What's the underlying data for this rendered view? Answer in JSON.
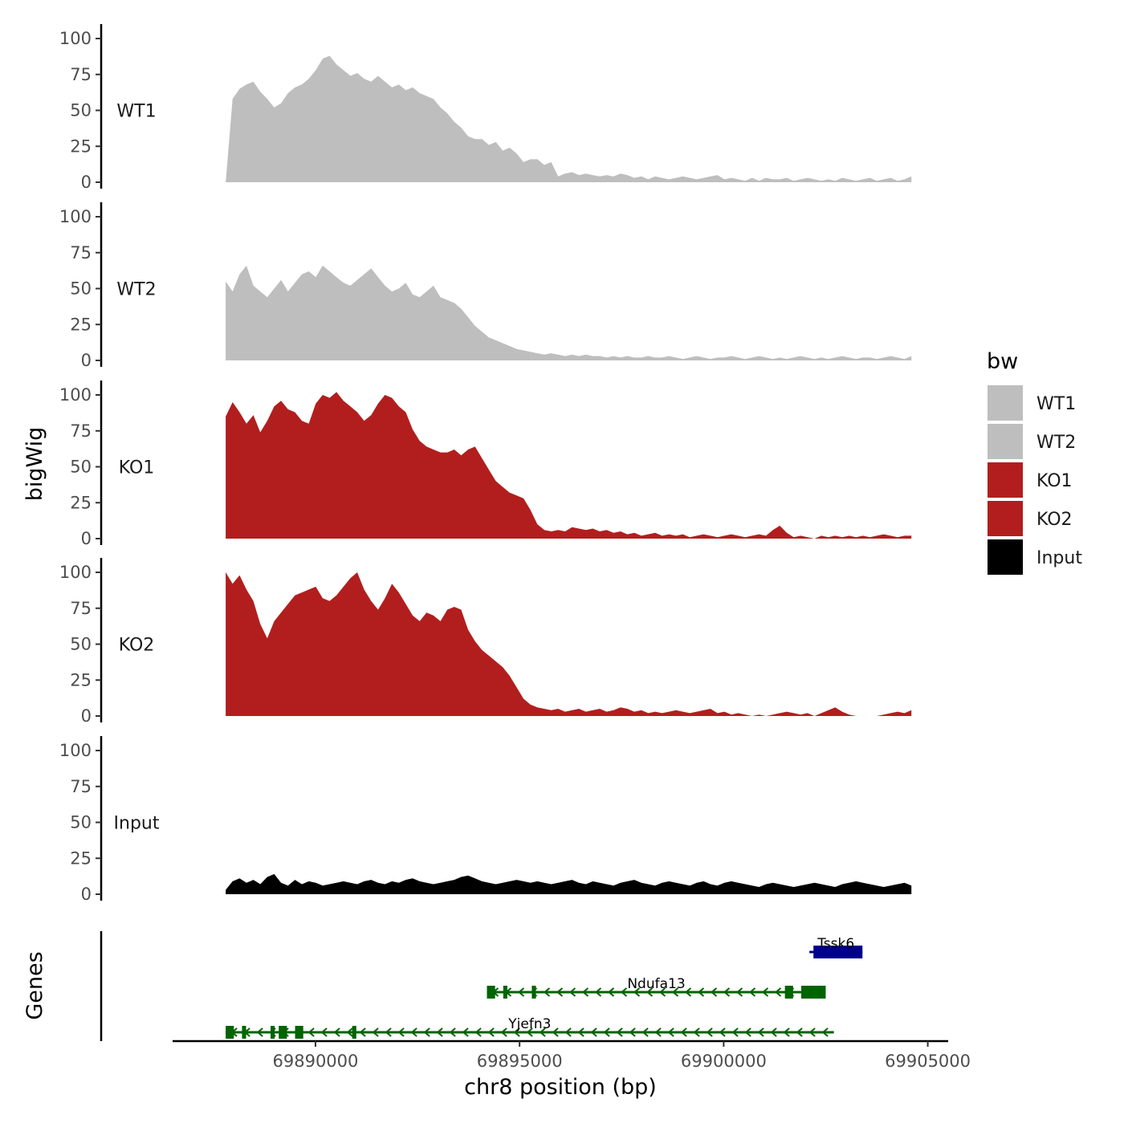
{
  "chart_data": {
    "type": "area",
    "y_axis_title": "bigWig",
    "x_axis_title": "chr8 position (bp)",
    "genes_title": "Genes",
    "x_range": [
      69886500,
      69905500
    ],
    "x_ticks": [
      69890000,
      69895000,
      69900000,
      69905000
    ],
    "x_tick_labels": [
      "69890000",
      "69895000",
      "69900000",
      "69905000"
    ],
    "y_range": [
      0,
      100
    ],
    "y_ticks": [
      0,
      25,
      50,
      75,
      100
    ],
    "y_tick_labels": [
      "0",
      "25",
      "50",
      "75",
      "100"
    ],
    "data_x_range": [
      69887800,
      69904600
    ],
    "tracks": [
      {
        "name": "WT1",
        "color": "#bebebe",
        "values": [
          0,
          58,
          65,
          68,
          70,
          63,
          58,
          52,
          55,
          62,
          66,
          68,
          72,
          78,
          86,
          88,
          82,
          78,
          74,
          76,
          72,
          70,
          74,
          70,
          66,
          68,
          64,
          66,
          62,
          60,
          58,
          52,
          48,
          42,
          38,
          32,
          30,
          30,
          26,
          28,
          22,
          24,
          20,
          14,
          16,
          16,
          12,
          14,
          4,
          6,
          7,
          5,
          6,
          5,
          4,
          5,
          4,
          6,
          5,
          3,
          4,
          2,
          4,
          3,
          2,
          3,
          4,
          3,
          2,
          3,
          4,
          5,
          2,
          3,
          2,
          1,
          3,
          1,
          3,
          2,
          2,
          3,
          1,
          2,
          3,
          2,
          1,
          2,
          1,
          3,
          2,
          1,
          2,
          3,
          1,
          2,
          3,
          1,
          2,
          4
        ]
      },
      {
        "name": "WT2",
        "color": "#bebebe",
        "values": [
          55,
          48,
          60,
          66,
          52,
          48,
          44,
          50,
          56,
          48,
          54,
          60,
          62,
          58,
          66,
          62,
          58,
          54,
          52,
          56,
          60,
          64,
          58,
          52,
          48,
          50,
          54,
          46,
          44,
          48,
          52,
          44,
          42,
          40,
          36,
          30,
          24,
          20,
          16,
          14,
          12,
          10,
          8,
          7,
          6,
          5,
          4,
          5,
          4,
          3,
          4,
          3,
          4,
          3,
          3,
          2,
          3,
          2,
          3,
          2,
          2,
          3,
          2,
          2,
          3,
          2,
          1,
          2,
          3,
          2,
          1,
          2,
          2,
          3,
          2,
          1,
          2,
          3,
          2,
          1,
          2,
          1,
          2,
          3,
          2,
          1,
          2,
          1,
          2,
          3,
          2,
          1,
          2,
          2,
          1,
          2,
          3,
          2,
          1,
          3
        ]
      },
      {
        "name": "KO1",
        "color": "#b21e1e",
        "values": [
          85,
          95,
          88,
          80,
          86,
          74,
          82,
          92,
          96,
          90,
          88,
          82,
          80,
          94,
          100,
          98,
          102,
          96,
          92,
          88,
          82,
          86,
          94,
          100,
          98,
          92,
          88,
          76,
          68,
          64,
          62,
          60,
          60,
          62,
          58,
          62,
          64,
          56,
          48,
          40,
          36,
          32,
          30,
          28,
          20,
          10,
          6,
          5,
          6,
          5,
          8,
          7,
          6,
          7,
          5,
          6,
          4,
          5,
          3,
          4,
          2,
          3,
          4,
          2,
          3,
          2,
          3,
          1,
          2,
          3,
          2,
          1,
          2,
          3,
          2,
          1,
          2,
          3,
          2,
          6,
          9,
          4,
          1,
          2,
          1,
          0,
          2,
          1,
          2,
          1,
          2,
          1,
          2,
          1,
          2,
          3,
          2,
          1,
          2,
          2
        ]
      },
      {
        "name": "KO2",
        "color": "#b21e1e",
        "values": [
          100,
          92,
          98,
          88,
          80,
          64,
          54,
          66,
          72,
          78,
          84,
          86,
          88,
          90,
          82,
          80,
          84,
          90,
          96,
          100,
          88,
          80,
          74,
          82,
          92,
          86,
          78,
          70,
          66,
          72,
          70,
          66,
          74,
          76,
          74,
          60,
          52,
          46,
          42,
          38,
          34,
          28,
          20,
          12,
          8,
          6,
          5,
          4,
          5,
          3,
          4,
          5,
          3,
          4,
          5,
          3,
          4,
          6,
          5,
          3,
          4,
          2,
          3,
          2,
          3,
          4,
          3,
          2,
          3,
          4,
          5,
          2,
          3,
          1,
          2,
          1,
          0,
          1,
          0,
          1,
          2,
          3,
          2,
          1,
          2,
          0,
          2,
          4,
          6,
          3,
          1,
          0,
          0,
          0,
          0,
          1,
          2,
          3,
          2,
          4
        ]
      },
      {
        "name": "Input",
        "color": "#000000",
        "values": [
          3,
          9,
          11,
          8,
          10,
          7,
          12,
          14,
          8,
          6,
          10,
          7,
          9,
          8,
          6,
          7,
          8,
          9,
          8,
          7,
          9,
          10,
          8,
          7,
          9,
          8,
          10,
          11,
          9,
          8,
          7,
          8,
          9,
          10,
          12,
          13,
          11,
          9,
          8,
          7,
          8,
          9,
          10,
          9,
          8,
          9,
          8,
          7,
          8,
          9,
          10,
          8,
          7,
          9,
          8,
          7,
          6,
          8,
          9,
          10,
          8,
          7,
          6,
          8,
          9,
          8,
          7,
          6,
          8,
          9,
          7,
          6,
          8,
          9,
          8,
          7,
          6,
          5,
          7,
          8,
          7,
          6,
          5,
          6,
          7,
          8,
          7,
          6,
          5,
          7,
          8,
          9,
          8,
          7,
          6,
          5,
          6,
          7,
          8,
          6
        ]
      }
    ],
    "legend_title": "bw",
    "legend_items": [
      {
        "label": "WT1",
        "color": "#bebebe"
      },
      {
        "label": "WT2",
        "color": "#bebebe"
      },
      {
        "label": "KO1",
        "color": "#b21e1e"
      },
      {
        "label": "KO2",
        "color": "#b21e1e"
      },
      {
        "label": "Input",
        "color": "#000000"
      }
    ],
    "genes": [
      {
        "name": "Tssk6",
        "strand": "-",
        "start": 69902100,
        "end": 69903400,
        "color": "#00008b",
        "exons": [
          [
            69902200,
            69903400
          ]
        ]
      },
      {
        "name": "Ndufa13",
        "strand": "-",
        "start": 69894200,
        "end": 69902500,
        "color": "#006400",
        "exons": [
          [
            69894200,
            69894400
          ],
          [
            69894600,
            69894700
          ],
          [
            69895300,
            69895400
          ],
          [
            69901500,
            69901700
          ],
          [
            69901900,
            69902500
          ]
        ]
      },
      {
        "name": "Yjefn3",
        "strand": "-",
        "start": 69887800,
        "end": 69902700,
        "color": "#006400",
        "exons": [
          [
            69887800,
            69888000
          ],
          [
            69888200,
            69888300
          ],
          [
            69888900,
            69889000
          ],
          [
            69889100,
            69889300
          ],
          [
            69889500,
            69889700
          ],
          [
            69890900,
            69891000
          ]
        ]
      }
    ]
  }
}
